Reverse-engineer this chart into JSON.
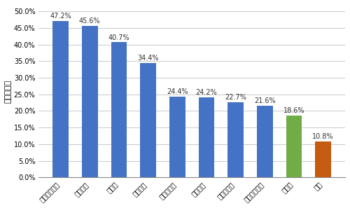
{
  "categories": [
    "俨克拉何马州",
    "新泽西州",
    "纽约州",
    "密歇根州",
    "康涅狄格州",
    "佐治亚州",
    "密西西比州",
    "路易斯安那州",
    "意大利",
    "德国"
  ],
  "values": [
    0.472,
    0.456,
    0.407,
    0.344,
    0.244,
    0.242,
    0.227,
    0.216,
    0.186,
    0.108
  ],
  "labels": [
    "47.2%",
    "45.6%",
    "40.7%",
    "34.4%",
    "24.4%",
    "24.2%",
    "22.7%",
    "21.6%",
    "18.6%",
    "10.8%"
  ],
  "bar_colors": [
    "#4472C4",
    "#4472C4",
    "#4472C4",
    "#4472C4",
    "#4472C4",
    "#4472C4",
    "#4472C4",
    "#4472C4",
    "#70AD47",
    "#C55A11"
  ],
  "ylabel": "疫情阳性率",
  "ylim": [
    0,
    0.52
  ],
  "yticks": [
    0.0,
    0.05,
    0.1,
    0.15,
    0.2,
    0.25,
    0.3,
    0.35,
    0.4,
    0.45,
    0.5
  ],
  "ytick_labels": [
    "0.0%",
    "5.0%",
    "10.0%",
    "15.0%",
    "20.0%",
    "25.0%",
    "30.0%",
    "35.0%",
    "40.0%",
    "45.0%",
    "50.0%"
  ],
  "background_color": "#FFFFFF",
  "grid_color": "#C0C0C0",
  "label_fontsize": 7,
  "ylabel_fontsize": 8,
  "tick_fontsize": 7,
  "bar_width": 0.55
}
